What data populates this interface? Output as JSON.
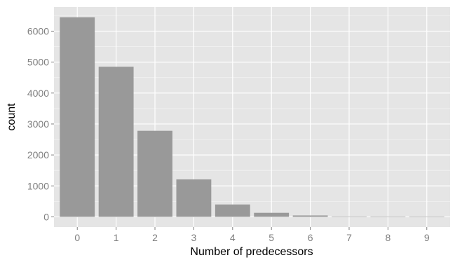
{
  "chart_data": {
    "type": "bar",
    "xlabel": "Number of predecessors",
    "ylabel": "count",
    "categories": [
      "0",
      "1",
      "2",
      "3",
      "4",
      "5",
      "6",
      "7",
      "8",
      "9"
    ],
    "values": [
      6450,
      4850,
      2780,
      1210,
      400,
      130,
      45,
      12,
      4,
      2
    ],
    "yticks": [
      0,
      1000,
      2000,
      3000,
      4000,
      5000,
      6000
    ],
    "ylim": [
      -330,
      6780
    ],
    "grid": true,
    "colors": {
      "panel": "#e5e5e5",
      "grid_major": "#ffffff",
      "grid_minor": "#f2f2f2",
      "bar": "#999999",
      "tick_text": "#7f7f7f",
      "axis_title": "#000000"
    }
  }
}
